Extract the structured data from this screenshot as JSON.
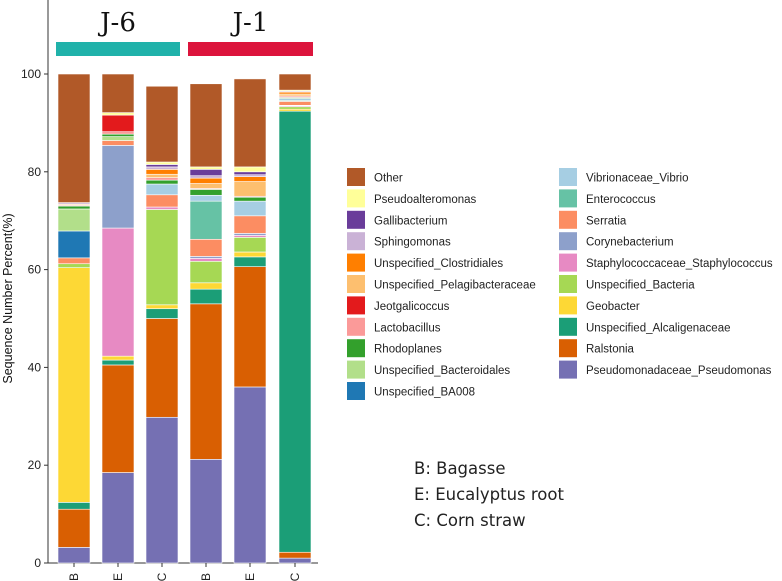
{
  "chart_data": {
    "type": "bar",
    "stacked": true,
    "title": "",
    "xlabel": "",
    "ylabel": "Sequence Number Percent(%)",
    "ylim": [
      0,
      100
    ],
    "yticks": [
      0,
      20,
      40,
      60,
      80,
      100
    ],
    "categories": [
      "B",
      "E",
      "C",
      "B",
      "E",
      "C"
    ],
    "groups": [
      {
        "name": "J-6",
        "color": "#20b2aa",
        "bars": [
          0,
          1,
          2
        ]
      },
      {
        "name": "J-1",
        "color": "#dc143c",
        "bars": [
          3,
          4,
          5
        ]
      }
    ],
    "series": [
      {
        "name": "Pseudomonadaceae_Pseudomonas",
        "color": "#7570b3",
        "values": [
          3.2,
          18.5,
          29.8,
          21.2,
          36,
          1
        ]
      },
      {
        "name": "Ralstonia",
        "color": "#d95f02",
        "values": [
          7.8,
          22,
          20.2,
          31.8,
          24.6,
          1.2
        ]
      },
      {
        "name": "Unspecified_Alcaligenaceae",
        "color": "#1b9e77",
        "values": [
          1.4,
          1,
          2,
          3,
          2,
          90.2
        ]
      },
      {
        "name": "Geobacter",
        "color": "#fdd835",
        "values": [
          48,
          0.8,
          0.8,
          1.3,
          1,
          0.4
        ]
      },
      {
        "name": "Unspecified_Bacteria",
        "color": "#a6d854",
        "values": [
          0.8,
          0,
          19.5,
          4.4,
          3,
          0.5
        ]
      },
      {
        "name": "Staphylococcaceae_Staphylococcus",
        "color": "#e78ac3",
        "values": [
          0,
          26.2,
          0.5,
          0.6,
          0.4,
          0.2
        ]
      },
      {
        "name": "Corynebacterium",
        "color": "#8da0cb",
        "values": [
          0,
          16.9,
          0,
          0.4,
          0.4,
          0.1
        ]
      },
      {
        "name": "Serratia",
        "color": "#fc8d62",
        "values": [
          1.2,
          1,
          2.5,
          3.5,
          3.6,
          0.8
        ]
      },
      {
        "name": "Enterococcus",
        "color": "#66c2a5",
        "values": [
          0,
          0,
          0,
          7.8,
          0,
          0.2
        ]
      },
      {
        "name": "Vibrionaceae_Vibrio",
        "color": "#a6cee3",
        "values": [
          0,
          0,
          2.2,
          1.2,
          3,
          0.4
        ]
      },
      {
        "name": "Unspecified_BA008",
        "color": "#1f78b4",
        "values": [
          5.5,
          0,
          0,
          0,
          0,
          0
        ]
      },
      {
        "name": "Unspecified_Bacteroidales",
        "color": "#b2df8a",
        "values": [
          4.5,
          0.8,
          0,
          0,
          0,
          0
        ]
      },
      {
        "name": "Rhodoplanes",
        "color": "#33a02c",
        "values": [
          0.6,
          0.5,
          0.8,
          1.2,
          0.8,
          0.2
        ]
      },
      {
        "name": "Lactobacillus",
        "color": "#fb9a99",
        "values": [
          0.2,
          0.5,
          0.5,
          0.2,
          0.2,
          0.3
        ]
      },
      {
        "name": "Jeotgalicoccus",
        "color": "#e31a1c",
        "values": [
          0,
          3.4,
          0,
          0,
          0,
          0
        ]
      },
      {
        "name": "Unspecified_Pelagibacteraceae",
        "color": "#fdbf6f",
        "values": [
          0.2,
          0,
          0.7,
          1,
          3,
          0.4
        ]
      },
      {
        "name": "Unspecified_Clostridiales",
        "color": "#ff7f00",
        "values": [
          0,
          0,
          1,
          1.1,
          1,
          0.4
        ]
      },
      {
        "name": "Sphingomonas",
        "color": "#cab2d6",
        "values": [
          0.3,
          0,
          0.5,
          0.5,
          0.4,
          0.2
        ]
      },
      {
        "name": "Gallibacterium",
        "color": "#6a3d9a",
        "values": [
          0,
          0,
          0.5,
          1.3,
          0.6,
          0
        ]
      },
      {
        "name": "Pseudoalteromonas",
        "color": "#ffff99",
        "values": [
          0,
          0.5,
          0.5,
          0.5,
          1,
          0.2
        ]
      },
      {
        "name": "Other",
        "color": "#b15928",
        "values": [
          26.3,
          7.9,
          15.5,
          17,
          18,
          3.3
        ]
      }
    ],
    "legend": {
      "placement": "right",
      "columns": [
        [
          "Other",
          "Pseudoalteromonas",
          "Gallibacterium",
          "Sphingomonas",
          "Unspecified_Clostridiales",
          "Unspecified_Pelagibacteraceae",
          "Jeotgalicoccus",
          "Lactobacillus",
          "Rhodoplanes",
          "Unspecified_Bacteroidales",
          "Unspecified_BA008"
        ],
        [
          "Vibrionaceae_Vibrio",
          "Enterococcus",
          "Serratia",
          "Corynebacterium",
          "Staphylococcaceae_Staphylococcus",
          "Unspecified_Bacteria",
          "Geobacter",
          "Unspecified_Alcaligenaceae",
          "Ralstonia",
          "Pseudomonadaceae_Pseudomonas"
        ]
      ]
    }
  },
  "notes": [
    {
      "text": "B: Bagasse"
    },
    {
      "text": "E: Eucalyptus root"
    },
    {
      "text": "C: Corn straw"
    }
  ]
}
